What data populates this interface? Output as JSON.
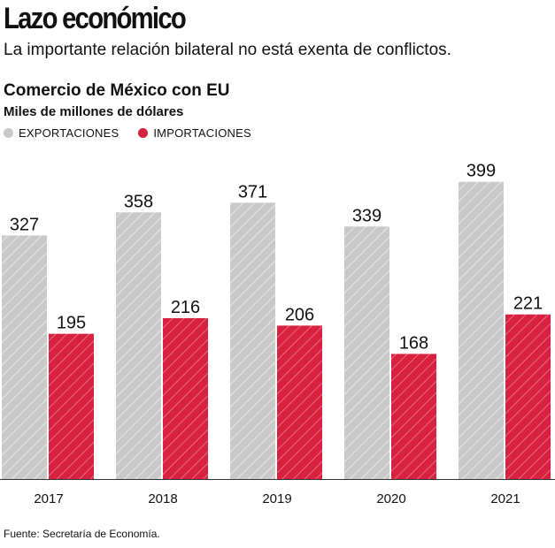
{
  "header": {
    "title": "Lazo económico",
    "subtitle": "La importante relación bilateral no está exenta de conflictos."
  },
  "colors": {
    "export": "#c9c9c9",
    "import": "#d8203f",
    "baseline": "#333333"
  },
  "chart_data": {
    "type": "bar",
    "title": "Comercio de México con EU",
    "ylabel": "Miles de millones de dólares",
    "categories": [
      "2017",
      "2018",
      "2019",
      "2020",
      "2021"
    ],
    "series": [
      {
        "name": "EXPORTACIONES",
        "values": [
          327,
          358,
          371,
          339,
          399
        ]
      },
      {
        "name": "IMPORTACIONES",
        "values": [
          195,
          216,
          206,
          168,
          221
        ]
      }
    ],
    "ylim": [
      0,
      420
    ],
    "legend": "top-left",
    "grid": false
  },
  "footer": {
    "source": "Fuente: Secretaría de Economía."
  }
}
